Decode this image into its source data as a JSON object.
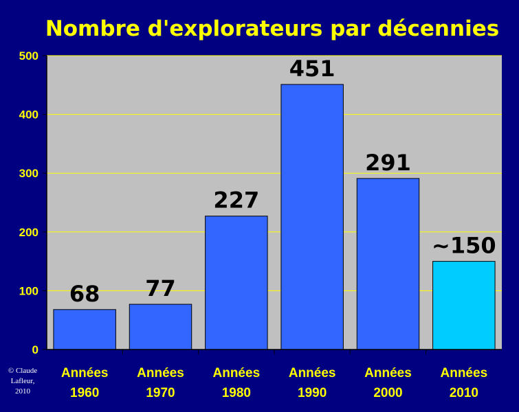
{
  "chart_data": {
    "type": "bar",
    "title": "Nombre d'explorateurs par décennies",
    "xlabel": "",
    "ylabel": "",
    "categories": [
      [
        "Années",
        "1960"
      ],
      [
        "Années",
        "1970"
      ],
      [
        "Années",
        "1980"
      ],
      [
        "Années",
        "1990"
      ],
      [
        "Années",
        "2000"
      ],
      [
        "Années",
        "2010"
      ]
    ],
    "values": [
      68,
      77,
      227,
      451,
      291,
      150
    ],
    "data_labels": [
      "68",
      "77",
      "227",
      "451",
      "291",
      "~150"
    ],
    "ylim": [
      0,
      500
    ],
    "yticks": [
      0,
      100,
      200,
      300,
      400,
      500
    ],
    "grid": true,
    "legend": "none",
    "colors": {
      "background": "#000080",
      "plot_area": "#c0c0c0",
      "bar": "#3366ff",
      "bar_highlight": "#00ccff",
      "gridline": "#ffff00",
      "text": "#ffff00",
      "data_label": "#000000"
    },
    "highlight_index": 5
  },
  "credit": [
    "© Claude",
    "Lafleur,",
    "2010"
  ]
}
